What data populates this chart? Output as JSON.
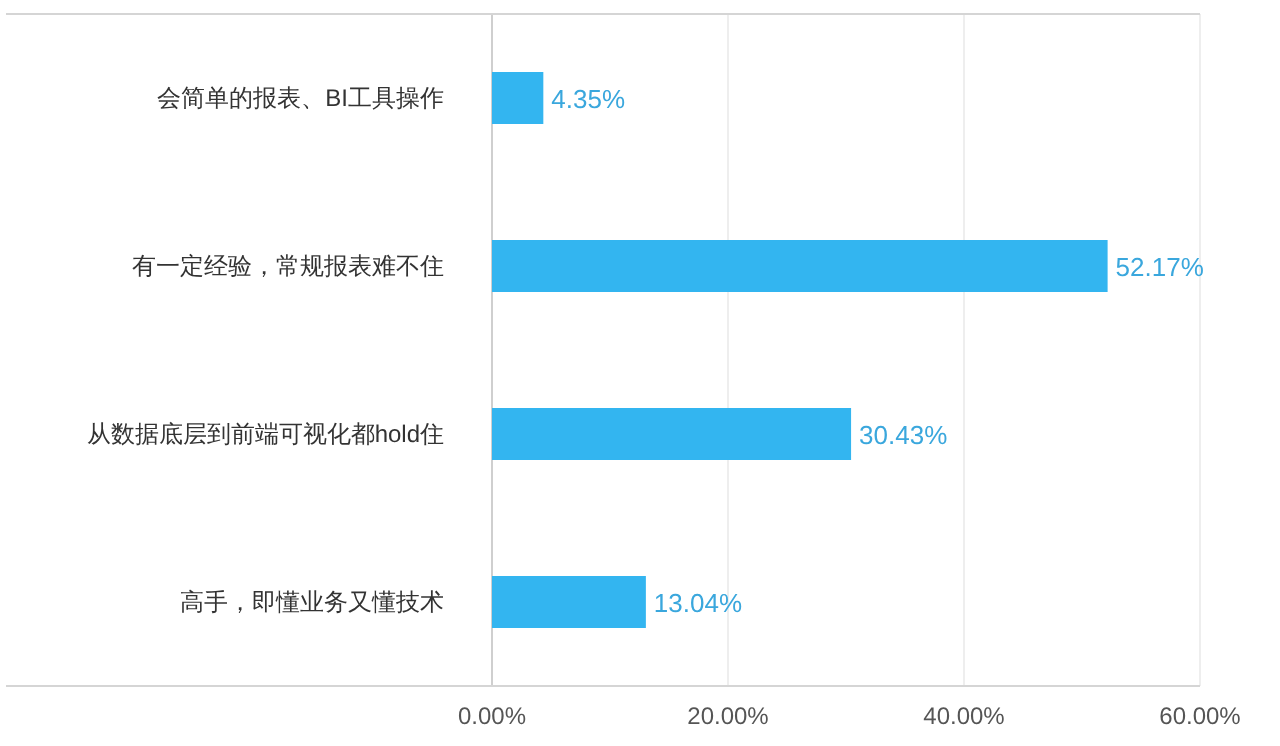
{
  "chart_data": {
    "type": "bar",
    "orientation": "horizontal",
    "categories": [
      "会简单的报表、BI工具操作",
      "有一定经验，常规报表难不住",
      "从数据底层到前端可视化都hold住",
      "高手，即懂业务又懂技术"
    ],
    "values": [
      4.35,
      52.17,
      30.43,
      13.04
    ],
    "value_labels": [
      "4.35%",
      "52.17%",
      "30.43%",
      "13.04%"
    ],
    "color": "#33b5f0",
    "xlim": [
      0,
      60
    ],
    "xticks": [
      {
        "value": 0,
        "label": "0.00%"
      },
      {
        "value": 20,
        "label": "20.00%"
      },
      {
        "value": 40,
        "label": "40.00%"
      },
      {
        "value": 60,
        "label": "60.00%"
      }
    ],
    "grid": "x"
  }
}
